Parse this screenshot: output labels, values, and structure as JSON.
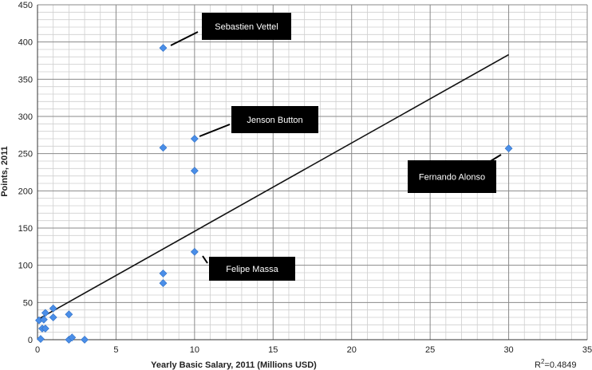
{
  "chart_data": {
    "type": "scatter",
    "title": "",
    "xlabel": "Yearly Basic Salary, 2011 (Millions USD)",
    "ylabel": "Points, 2011",
    "xlim": [
      0,
      35
    ],
    "ylim": [
      0,
      450
    ],
    "x_major_ticks": [
      0,
      5,
      10,
      15,
      20,
      25,
      30,
      35
    ],
    "y_major_ticks": [
      0,
      50,
      100,
      150,
      200,
      250,
      300,
      350,
      400,
      450
    ],
    "x_tick_labels": [
      "0",
      "5",
      "10",
      "15",
      "20",
      "25",
      "30",
      "35"
    ],
    "y_tick_labels": [
      "0",
      "50",
      "100",
      "150",
      "200",
      "250",
      "300",
      "350",
      "400",
      "450"
    ],
    "grid": true,
    "marker_color": "#4a8ee8",
    "points": [
      {
        "x": 8,
        "y": 392
      },
      {
        "x": 10,
        "y": 270
      },
      {
        "x": 8,
        "y": 258
      },
      {
        "x": 10,
        "y": 227
      },
      {
        "x": 30,
        "y": 257
      },
      {
        "x": 10,
        "y": 118
      },
      {
        "x": 8,
        "y": 89
      },
      {
        "x": 8,
        "y": 76
      },
      {
        "x": 0.1,
        "y": 26
      },
      {
        "x": 0.3,
        "y": 15
      },
      {
        "x": 0.2,
        "y": 1
      },
      {
        "x": 0.4,
        "y": 27
      },
      {
        "x": 0.5,
        "y": 36
      },
      {
        "x": 0.5,
        "y": 15
      },
      {
        "x": 1,
        "y": 42
      },
      {
        "x": 1,
        "y": 30
      },
      {
        "x": 2,
        "y": 34
      },
      {
        "x": 2,
        "y": 0
      },
      {
        "x": 2.2,
        "y": 3
      },
      {
        "x": 3,
        "y": 0
      }
    ],
    "trendline": {
      "x": [
        0,
        30
      ],
      "y": [
        27,
        383
      ]
    },
    "r_squared": {
      "prefix": "R",
      "sup": "2",
      "text": "=0.4849"
    },
    "annotations": [
      {
        "text": "Sebastien Vettel",
        "point": {
          "x": 8,
          "y": 392
        }
      },
      {
        "text": "Jenson Button",
        "point": {
          "x": 10,
          "y": 270
        }
      },
      {
        "text": "Fernando Alonso",
        "point": {
          "x": 30,
          "y": 257
        }
      },
      {
        "text": "Felipe Massa",
        "point": {
          "x": 10,
          "y": 118
        }
      }
    ]
  }
}
